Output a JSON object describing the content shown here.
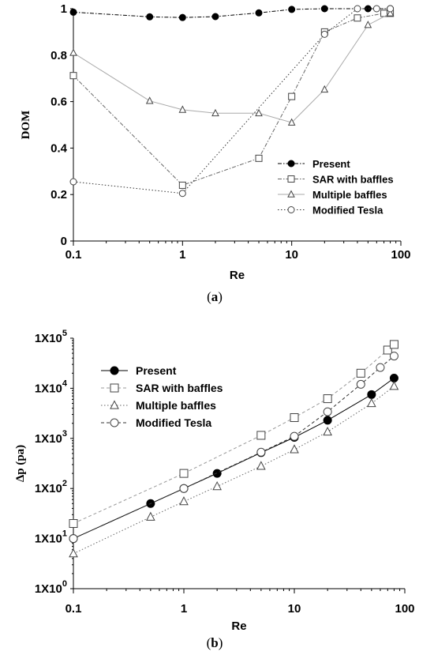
{
  "chart_data": [
    {
      "panel_label": "a",
      "type": "line",
      "x_scale": "log",
      "xlabel": "Re",
      "ylabel": "DOM",
      "xlim": [
        0.1,
        100
      ],
      "ylim": [
        0,
        1
      ],
      "x_ticks": [
        "0.1",
        "1",
        "10",
        "100"
      ],
      "y_ticks": [
        "0",
        "0.2",
        "0.4",
        "0.6",
        "0.8",
        "1"
      ],
      "legend_position": "lower-right",
      "grid": false,
      "series": [
        {
          "name": "Present",
          "marker": "filled-circle",
          "line": "dashdot",
          "color": "#000000",
          "x": [
            0.1,
            0.5,
            1,
            2,
            5,
            10,
            20,
            50,
            80
          ],
          "y": [
            0.985,
            0.965,
            0.962,
            0.966,
            0.982,
            0.997,
            1.0,
            1.0,
            1.0
          ]
        },
        {
          "name": "SAR with baffles",
          "marker": "open-square",
          "line": "dashdot",
          "color": "#666666",
          "x": [
            0.1,
            1,
            5,
            10,
            20,
            40,
            70,
            80
          ],
          "y": [
            0.712,
            0.24,
            0.356,
            0.622,
            0.9,
            0.96,
            0.98,
            0.98
          ]
        },
        {
          "name": "Multiple baffles",
          "marker": "open-triangle",
          "line": "solid",
          "color": "#aaaaaa",
          "x": [
            0.1,
            0.5,
            1,
            2,
            5,
            10,
            20,
            50,
            80
          ],
          "y": [
            0.81,
            0.603,
            0.565,
            0.55,
            0.55,
            0.51,
            0.652,
            0.93,
            0.98
          ]
        },
        {
          "name": "Modified Tesla",
          "marker": "open-circle",
          "line": "dotted",
          "color": "#333333",
          "x": [
            0.1,
            1,
            20,
            40,
            60,
            80
          ],
          "y": [
            0.255,
            0.205,
            0.89,
            1.0,
            1.0,
            1.0
          ]
        }
      ]
    },
    {
      "panel_label": "b",
      "type": "line",
      "x_scale": "log",
      "y_scale": "log",
      "xlabel": "Re",
      "ylabel": "Δp (pa)",
      "xlim": [
        0.1,
        100
      ],
      "ylim": [
        1,
        100000
      ],
      "x_ticks": [
        "0.1",
        "1",
        "10",
        "100"
      ],
      "y_ticks": [
        {
          "base": "1X10",
          "exp": "0"
        },
        {
          "base": "1X10",
          "exp": "1"
        },
        {
          "base": "1X10",
          "exp": "2"
        },
        {
          "base": "1X10",
          "exp": "3"
        },
        {
          "base": "1X10",
          "exp": "4"
        },
        {
          "base": "1X10",
          "exp": "5"
        }
      ],
      "legend_position": "top-left",
      "grid": false,
      "series": [
        {
          "name": "Present",
          "marker": "filled-circle",
          "line": "solid",
          "color": "#000000",
          "x": [
            0.1,
            0.5,
            1,
            2,
            5,
            10,
            20,
            50,
            80
          ],
          "y": [
            10,
            50,
            100,
            200,
            520,
            1050,
            2300,
            7500,
            16000
          ]
        },
        {
          "name": "SAR with baffles",
          "marker": "open-square",
          "line": "dashed",
          "color": "#999999",
          "x": [
            0.1,
            1,
            5,
            10,
            20,
            40,
            70,
            80
          ],
          "y": [
            20,
            200,
            1150,
            2600,
            6200,
            20000,
            58000,
            75000
          ]
        },
        {
          "name": "Multiple baffles",
          "marker": "open-triangle",
          "line": "dotted",
          "color": "#666666",
          "x": [
            0.1,
            0.5,
            1,
            2,
            5,
            10,
            20,
            50,
            80
          ],
          "y": [
            5,
            27,
            55,
            110,
            280,
            600,
            1350,
            5000,
            11000
          ]
        },
        {
          "name": "Modified Tesla",
          "marker": "open-circle",
          "line": "dashed",
          "color": "#333333",
          "x": [
            0.1,
            1,
            5,
            10,
            20,
            40,
            60,
            80
          ],
          "y": [
            10,
            100,
            530,
            1100,
            3400,
            12000,
            26000,
            44000
          ]
        }
      ]
    }
  ]
}
